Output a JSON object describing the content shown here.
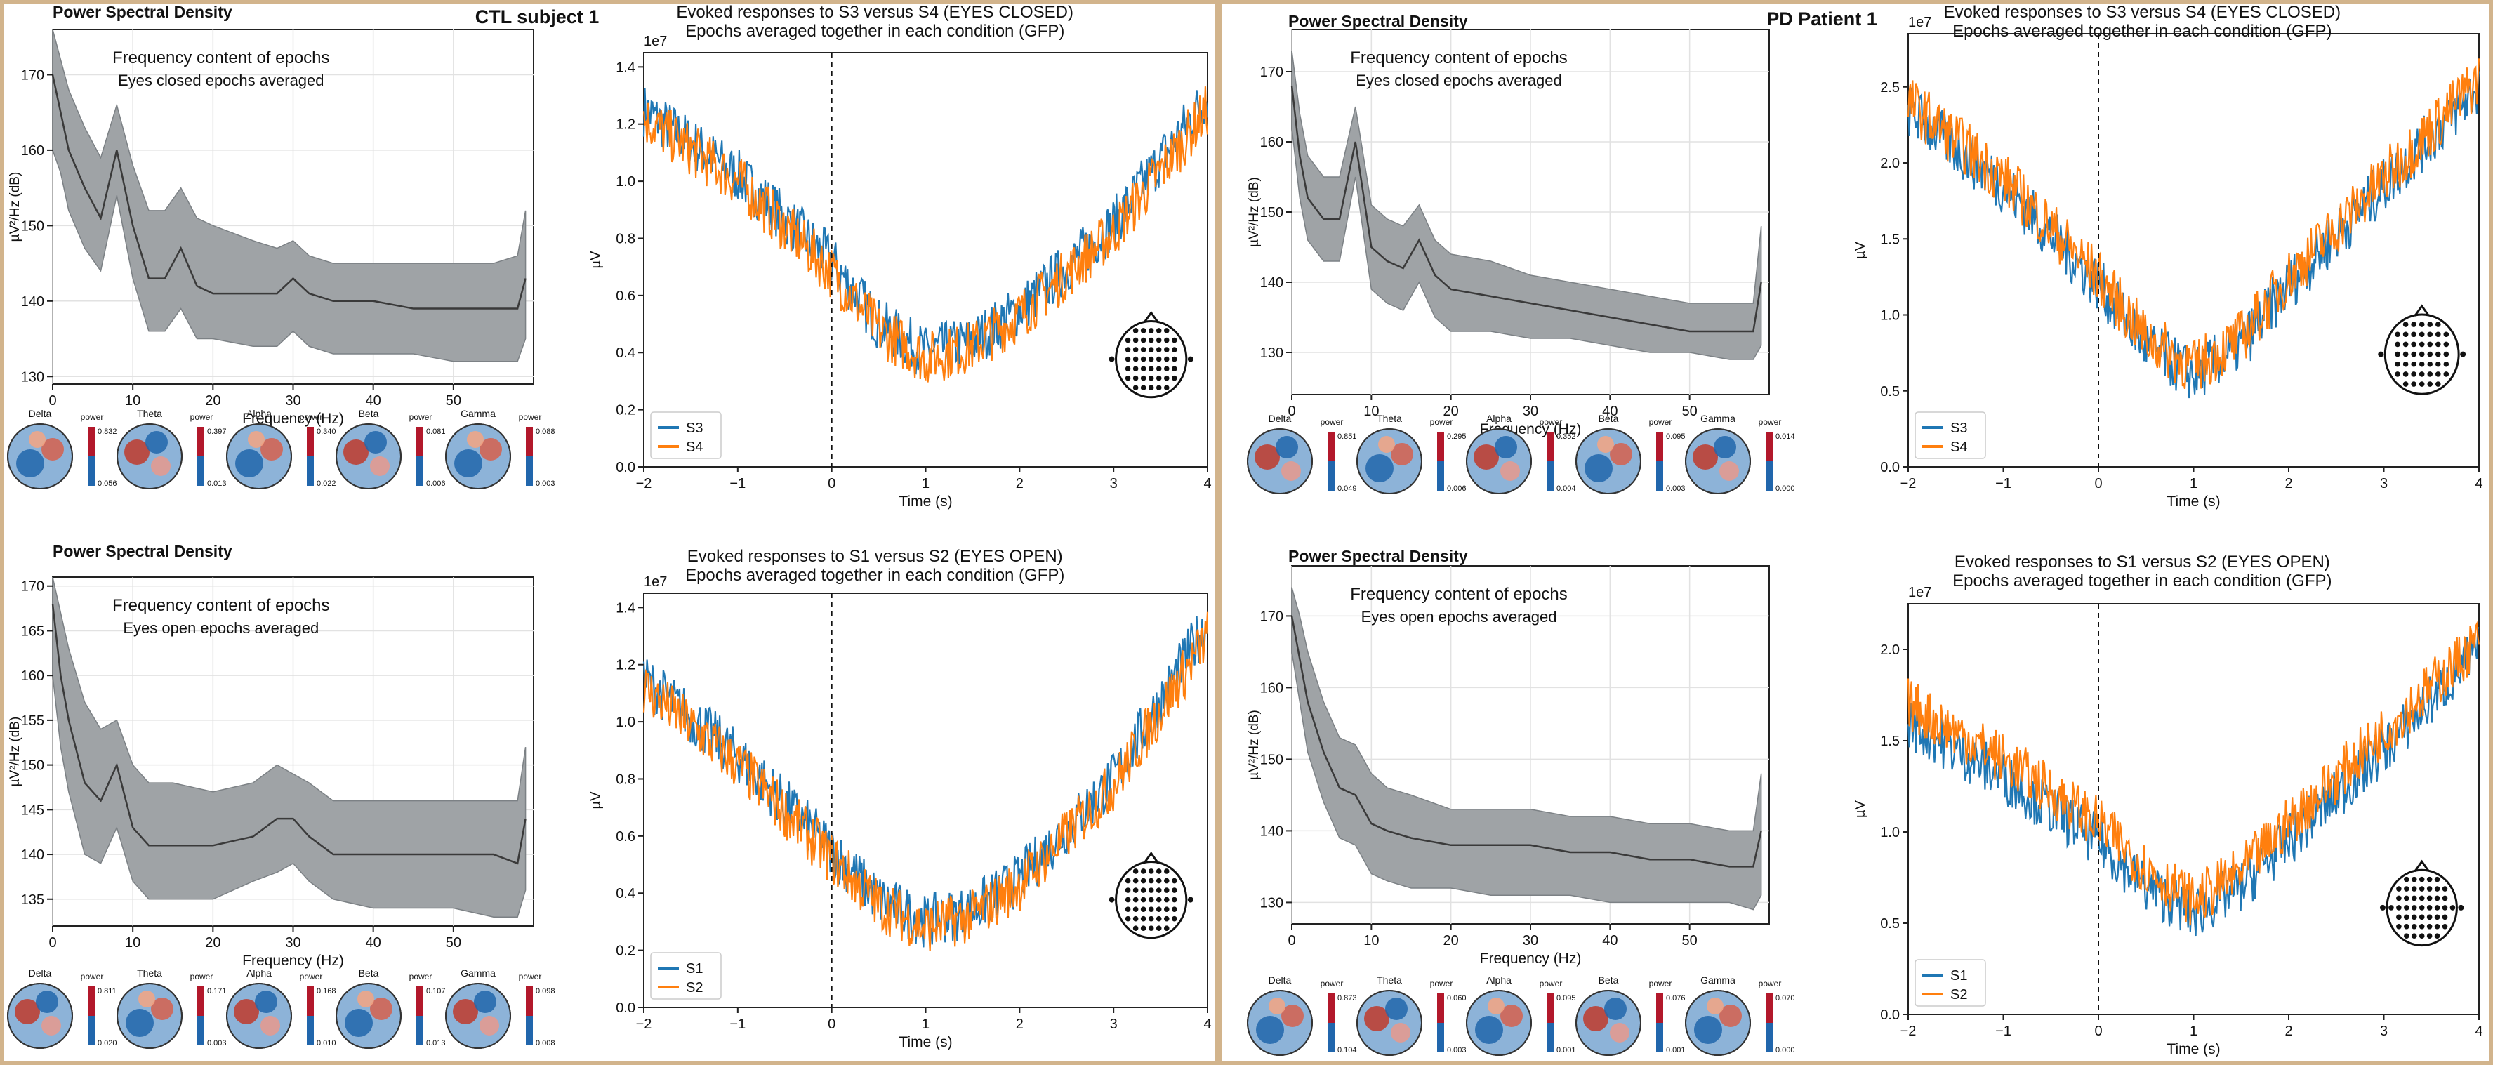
{
  "panels": [
    {
      "subject_title": "CTL subject 1",
      "psd": [
        {
          "title": "Power Spectral Density",
          "annotation": [
            "Frequency content of epochs",
            "Eyes closed epochs averaged"
          ],
          "xlabel": "Frequency (Hz)",
          "ylabel": "µV²/Hz (dB)",
          "x_ticks": [
            "0",
            "10",
            "20",
            "30",
            "40",
            "50"
          ],
          "y_ticks": [
            "130",
            "140",
            "150",
            "160",
            "170"
          ],
          "topomaps": [
            {
              "band": "Delta",
              "scale_label": "power",
              "max": "0.832",
              "min": "0.056"
            },
            {
              "band": "Theta",
              "scale_label": "power",
              "max": "0.397",
              "min": "0.013"
            },
            {
              "band": "Alpha",
              "scale_label": "power",
              "max": "0.340",
              "min": "0.022"
            },
            {
              "band": "Beta",
              "scale_label": "power",
              "max": "0.081",
              "min": "0.006"
            },
            {
              "band": "Gamma",
              "scale_label": "power",
              "max": "0.088",
              "min": "0.003"
            }
          ]
        },
        {
          "title": "Power Spectral Density",
          "annotation": [
            "Frequency content of epochs",
            "Eyes open epochs averaged"
          ],
          "xlabel": "Frequency (Hz)",
          "ylabel": "µV²/Hz (dB)",
          "x_ticks": [
            "0",
            "10",
            "20",
            "30",
            "40",
            "50"
          ],
          "y_ticks": [
            "135",
            "140",
            "145",
            "150",
            "155",
            "160",
            "165",
            "170"
          ],
          "topomaps": [
            {
              "band": "Delta",
              "scale_label": "power",
              "max": "0.811",
              "min": "0.020"
            },
            {
              "band": "Theta",
              "scale_label": "power",
              "max": "0.171",
              "min": "0.003"
            },
            {
              "band": "Alpha",
              "scale_label": "power",
              "max": "0.168",
              "min": "0.010"
            },
            {
              "band": "Beta",
              "scale_label": "power",
              "max": "0.107",
              "min": "0.013"
            },
            {
              "band": "Gamma",
              "scale_label": "power",
              "max": "0.098",
              "min": "0.008"
            }
          ]
        }
      ],
      "evoked": [
        {
          "title": [
            "Evoked responses to S3 versus S4 (EYES CLOSED)",
            "Epochs averaged together in each condition (GFP)"
          ],
          "scale": "1e7",
          "xlabel": "Time (s)",
          "ylabel": "µV",
          "x_ticks": [
            "−2",
            "−1",
            "0",
            "1",
            "2",
            "3",
            "4"
          ],
          "y_ticks": [
            "0.0",
            "0.2",
            "0.4",
            "0.6",
            "0.8",
            "1.0",
            "1.2",
            "1.4"
          ],
          "legend": [
            "S3",
            "S4"
          ]
        },
        {
          "title": [
            "Evoked responses to S1 versus S2 (EYES OPEN)",
            "Epochs averaged together in each condition (GFP)"
          ],
          "scale": "1e7",
          "xlabel": "Time (s)",
          "ylabel": "µV",
          "x_ticks": [
            "−2",
            "−1",
            "0",
            "1",
            "2",
            "3",
            "4"
          ],
          "y_ticks": [
            "0.0",
            "0.2",
            "0.4",
            "0.6",
            "0.8",
            "1.0",
            "1.2",
            "1.4"
          ],
          "legend": [
            "S1",
            "S2"
          ]
        }
      ]
    },
    {
      "subject_title": "PD Patient 1",
      "psd": [
        {
          "title": "Power Spectral Density",
          "annotation": [
            "Frequency content of epochs",
            "Eyes closed epochs averaged"
          ],
          "xlabel": "Frequency (Hz)",
          "ylabel": "µV²/Hz (dB)",
          "x_ticks": [
            "0",
            "10",
            "20",
            "30",
            "40",
            "50"
          ],
          "y_ticks": [
            "130",
            "140",
            "150",
            "160",
            "170"
          ],
          "topomaps": [
            {
              "band": "Delta",
              "scale_label": "power",
              "max": "0.851",
              "min": "0.049"
            },
            {
              "band": "Theta",
              "scale_label": "power",
              "max": "0.295",
              "min": "0.006"
            },
            {
              "band": "Alpha",
              "scale_label": "power",
              "max": "0.352",
              "min": "0.004"
            },
            {
              "band": "Beta",
              "scale_label": "power",
              "max": "0.095",
              "min": "0.003"
            },
            {
              "band": "Gamma",
              "scale_label": "power",
              "max": "0.014",
              "min": "0.000"
            }
          ]
        },
        {
          "title": "Power Spectral Density",
          "annotation": [
            "Frequency content of epochs",
            "Eyes open epochs averaged"
          ],
          "xlabel": "Frequency (Hz)",
          "ylabel": "µV²/Hz (dB)",
          "x_ticks": [
            "0",
            "10",
            "20",
            "30",
            "40",
            "50"
          ],
          "y_ticks": [
            "130",
            "140",
            "150",
            "160",
            "170"
          ],
          "topomaps": [
            {
              "band": "Delta",
              "scale_label": "power",
              "max": "0.873",
              "min": "0.104"
            },
            {
              "band": "Theta",
              "scale_label": "power",
              "max": "0.060",
              "min": "0.003"
            },
            {
              "band": "Alpha",
              "scale_label": "power",
              "max": "0.095",
              "min": "0.001"
            },
            {
              "band": "Beta",
              "scale_label": "power",
              "max": "0.076",
              "min": "0.001"
            },
            {
              "band": "Gamma",
              "scale_label": "power",
              "max": "0.070",
              "min": "0.000"
            }
          ]
        }
      ],
      "evoked": [
        {
          "title": [
            "Evoked responses to S3 versus S4 (EYES CLOSED)",
            "Epochs averaged together in each condition (GFP)"
          ],
          "scale": "1e7",
          "xlabel": "Time (s)",
          "ylabel": "µV",
          "x_ticks": [
            "−2",
            "−1",
            "0",
            "1",
            "2",
            "3",
            "4"
          ],
          "y_ticks": [
            "0.0",
            "0.5",
            "1.0",
            "1.5",
            "2.0",
            "2.5"
          ],
          "legend": [
            "S3",
            "S4"
          ]
        },
        {
          "title": [
            "Evoked responses to S1 versus S2 (EYES OPEN)",
            "Epochs averaged together in each condition (GFP)"
          ],
          "scale": "1e7",
          "xlabel": "Time (s)",
          "ylabel": "µV",
          "x_ticks": [
            "−2",
            "−1",
            "0",
            "1",
            "2",
            "3",
            "4"
          ],
          "y_ticks": [
            "0.0",
            "0.5",
            "1.0",
            "1.5",
            "2.0"
          ],
          "legend": [
            "S1",
            "S2"
          ]
        }
      ]
    }
  ],
  "colors": {
    "series_a": "#1f77b4",
    "series_b": "#ff7f0e",
    "psd_band": "#9fa3a6",
    "psd_line": "#3a3a3a",
    "topo_red": "#b2182b",
    "topo_blue": "#2166ac",
    "background": "#d2b48c"
  },
  "chart_data": [
    {
      "type": "area",
      "title": "Power Spectral Density",
      "subtitle": "CTL subject 1 — Eyes closed epochs averaged",
      "xlabel": "Frequency (Hz)",
      "ylabel": "µV²/Hz (dB)",
      "xlim": [
        0,
        60
      ],
      "ylim": [
        129,
        176
      ],
      "x": [
        0,
        1,
        2,
        4,
        6,
        8,
        10,
        12,
        14,
        16,
        18,
        20,
        25,
        28,
        30,
        32,
        35,
        40,
        45,
        50,
        55,
        58,
        59
      ],
      "series": [
        {
          "values": [
            170,
            165,
            160,
            155,
            151,
            160,
            150,
            143,
            143,
            147,
            142,
            141,
            141,
            141,
            143,
            141,
            140,
            140,
            139,
            139,
            139,
            139,
            143
          ]
        },
        {
          "values": [
            176,
            172,
            168,
            163,
            159,
            166,
            158,
            152,
            152,
            155,
            151,
            150,
            148,
            147,
            148,
            146,
            145,
            145,
            145,
            145,
            145,
            146,
            152
          ]
        },
        {
          "values": [
            160,
            157,
            152,
            147,
            144,
            154,
            143,
            136,
            136,
            139,
            135,
            135,
            134,
            134,
            136,
            134,
            133,
            133,
            133,
            132,
            132,
            132,
            135
          ]
        }
      ]
    },
    {
      "type": "area",
      "title": "Power Spectral Density",
      "subtitle": "CTL subject 1 — Eyes open epochs averaged",
      "xlabel": "Frequency (Hz)",
      "ylabel": "µV²/Hz (dB)",
      "xlim": [
        0,
        60
      ],
      "ylim": [
        132,
        171
      ],
      "x": [
        0,
        1,
        2,
        4,
        6,
        8,
        10,
        12,
        15,
        20,
        25,
        28,
        30,
        32,
        35,
        40,
        45,
        50,
        55,
        58,
        59
      ],
      "series": [
        {
          "values": [
            168,
            160,
            155,
            148,
            146,
            150,
            143,
            141,
            141,
            141,
            142,
            144,
            144,
            142,
            140,
            140,
            140,
            140,
            140,
            139,
            144
          ]
        },
        {
          "values": [
            171,
            167,
            163,
            157,
            154,
            155,
            150,
            148,
            148,
            147,
            148,
            150,
            149,
            148,
            146,
            146,
            146,
            146,
            146,
            146,
            152
          ]
        },
        {
          "values": [
            160,
            152,
            147,
            140,
            139,
            143,
            137,
            135,
            135,
            135,
            137,
            138,
            139,
            137,
            135,
            134,
            134,
            134,
            133,
            133,
            136
          ]
        }
      ]
    },
    {
      "type": "line",
      "title": "Evoked responses to S3 versus S4 (EYES CLOSED)",
      "subtitle": "Epochs averaged together in each condition (GFP)",
      "xlabel": "Time (s)",
      "ylabel": "µV",
      "ylim": [
        0,
        1.45
      ],
      "xlim": [
        -2,
        4
      ],
      "x": [
        -2,
        -1,
        0,
        0.5,
        1,
        1.5,
        2,
        3,
        4
      ],
      "series": [
        {
          "name": "S3",
          "values": [
            1.25,
            1.02,
            0.72,
            0.5,
            0.4,
            0.44,
            0.55,
            0.85,
            1.3
          ]
        },
        {
          "name": "S4",
          "values": [
            1.22,
            1.0,
            0.68,
            0.48,
            0.38,
            0.42,
            0.53,
            0.82,
            1.25
          ]
        }
      ]
    },
    {
      "type": "line",
      "title": "Evoked responses to S1 versus S2 (EYES OPEN)",
      "subtitle": "Epochs averaged together in each condition (GFP)",
      "xlabel": "Time (s)",
      "ylabel": "µV",
      "ylim": [
        0,
        1.45
      ],
      "xlim": [
        -2,
        4
      ],
      "x": [
        -2,
        -1,
        0,
        0.5,
        1,
        1.5,
        2,
        3,
        4
      ],
      "series": [
        {
          "name": "S1",
          "values": [
            1.15,
            0.88,
            0.55,
            0.38,
            0.3,
            0.34,
            0.45,
            0.8,
            1.35
          ]
        },
        {
          "name": "S2",
          "values": [
            1.12,
            0.85,
            0.52,
            0.36,
            0.28,
            0.32,
            0.43,
            0.78,
            1.3
          ]
        }
      ]
    },
    {
      "type": "line",
      "title": "Power Spectral Density",
      "subtitle": "PD Patient 1 — Eyes closed epochs averaged",
      "xlabel": "Frequency (Hz)",
      "ylabel": "µV²/Hz (dB)",
      "xlim": [
        0,
        60
      ],
      "ylim": [
        124,
        176
      ],
      "x": [
        0,
        1,
        2,
        4,
        6,
        8,
        10,
        12,
        14,
        16,
        18,
        20,
        25,
        30,
        35,
        40,
        45,
        50,
        55,
        58,
        59
      ],
      "series": [
        {
          "values": [
            168,
            158,
            152,
            149,
            149,
            160,
            145,
            143,
            142,
            146,
            141,
            139,
            138,
            137,
            136,
            135,
            134,
            133,
            133,
            133,
            140
          ]
        },
        {
          "values": [
            173,
            164,
            158,
            155,
            155,
            165,
            151,
            149,
            148,
            151,
            146,
            144,
            143,
            141,
            140,
            139,
            138,
            137,
            137,
            137,
            148
          ]
        },
        {
          "values": [
            162,
            152,
            146,
            143,
            143,
            155,
            139,
            137,
            136,
            140,
            135,
            133,
            133,
            132,
            132,
            131,
            130,
            130,
            129,
            129,
            131
          ]
        }
      ]
    },
    {
      "type": "line",
      "title": "Power Spectral Density",
      "subtitle": "PD Patient 1 — Eyes open epochs averaged",
      "xlabel": "Frequency (Hz)",
      "ylabel": "µV²/Hz (dB)",
      "xlim": [
        0,
        60
      ],
      "ylim": [
        127,
        177
      ],
      "x": [
        0,
        1,
        2,
        4,
        6,
        8,
        10,
        12,
        15,
        20,
        25,
        30,
        35,
        40,
        45,
        50,
        55,
        58,
        59
      ],
      "series": [
        {
          "values": [
            170,
            164,
            158,
            151,
            146,
            145,
            141,
            140,
            139,
            138,
            138,
            138,
            137,
            137,
            136,
            136,
            135,
            135,
            140
          ]
        },
        {
          "values": [
            174,
            170,
            165,
            158,
            153,
            152,
            148,
            146,
            145,
            143,
            143,
            143,
            142,
            142,
            141,
            141,
            140,
            140,
            148
          ]
        },
        {
          "values": [
            165,
            158,
            151,
            144,
            139,
            138,
            134,
            133,
            132,
            132,
            131,
            131,
            131,
            130,
            130,
            130,
            130,
            129,
            131
          ]
        }
      ]
    },
    {
      "type": "line",
      "title": "Evoked responses to S3 versus S4 (EYES CLOSED)",
      "subtitle": "Epochs averaged together in each condition (GFP)",
      "xlabel": "Time (s)",
      "ylabel": "µV",
      "ylim": [
        0,
        2.85
      ],
      "xlim": [
        -2,
        4
      ],
      "x": [
        -2,
        -1,
        0,
        0.5,
        1,
        1.5,
        2,
        3,
        4
      ],
      "series": [
        {
          "name": "S3",
          "values": [
            2.35,
            1.85,
            1.2,
            0.8,
            0.6,
            0.8,
            1.2,
            1.85,
            2.5
          ]
        },
        {
          "name": "S4",
          "values": [
            2.4,
            1.9,
            1.25,
            0.85,
            0.65,
            0.85,
            1.25,
            1.9,
            2.55
          ]
        }
      ]
    },
    {
      "type": "line",
      "title": "Evoked responses to S1 versus S2 (EYES OPEN)",
      "subtitle": "Epochs averaged together in each condition (GFP)",
      "xlabel": "Time (s)",
      "ylabel": "µV",
      "ylim": [
        0,
        2.25
      ],
      "xlim": [
        -2,
        4
      ],
      "x": [
        -2,
        -1,
        0,
        0.5,
        1,
        1.5,
        2,
        3,
        4
      ],
      "series": [
        {
          "name": "S1",
          "values": [
            1.6,
            1.3,
            0.95,
            0.7,
            0.55,
            0.7,
            0.95,
            1.45,
            2.0
          ]
        },
        {
          "name": "S2",
          "values": [
            1.7,
            1.4,
            1.05,
            0.8,
            0.62,
            0.78,
            1.05,
            1.55,
            2.05
          ]
        }
      ]
    }
  ]
}
